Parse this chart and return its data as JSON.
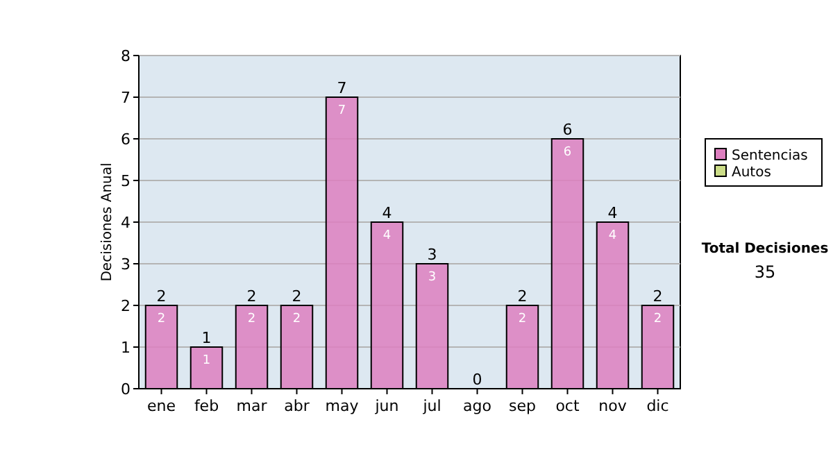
{
  "chart_data": {
    "type": "bar",
    "stacked": true,
    "ylabel": "Decisiones Anual",
    "categories": [
      "ene",
      "feb",
      "mar",
      "abr",
      "may",
      "jun",
      "jul",
      "ago",
      "sep",
      "oct",
      "nov",
      "dic"
    ],
    "series": [
      {
        "name": "Sentencias",
        "color": "#dd7fbf",
        "values": [
          2,
          1,
          2,
          2,
          7,
          4,
          3,
          0,
          2,
          6,
          4,
          2
        ],
        "value_labels": [
          "2",
          "1",
          "2",
          "2",
          "7",
          "4",
          "3",
          null,
          "2",
          "6",
          "4",
          "2"
        ]
      },
      {
        "name": "Autos",
        "color": "#ccdd88",
        "values": [
          0,
          0,
          0,
          0,
          0,
          0,
          0,
          0,
          0,
          0,
          0,
          0
        ]
      }
    ],
    "totals": [
      "2",
      "1",
      "2",
      "2",
      "7",
      "4",
      "3",
      "0",
      "2",
      "6",
      "4",
      "2"
    ],
    "ylim": [
      0,
      8
    ],
    "yticks": [
      0,
      1,
      2,
      3,
      4,
      5,
      6,
      7,
      8
    ],
    "grid": "y",
    "legend": "right",
    "annotations": [
      "Total Decisiones",
      "35"
    ]
  }
}
